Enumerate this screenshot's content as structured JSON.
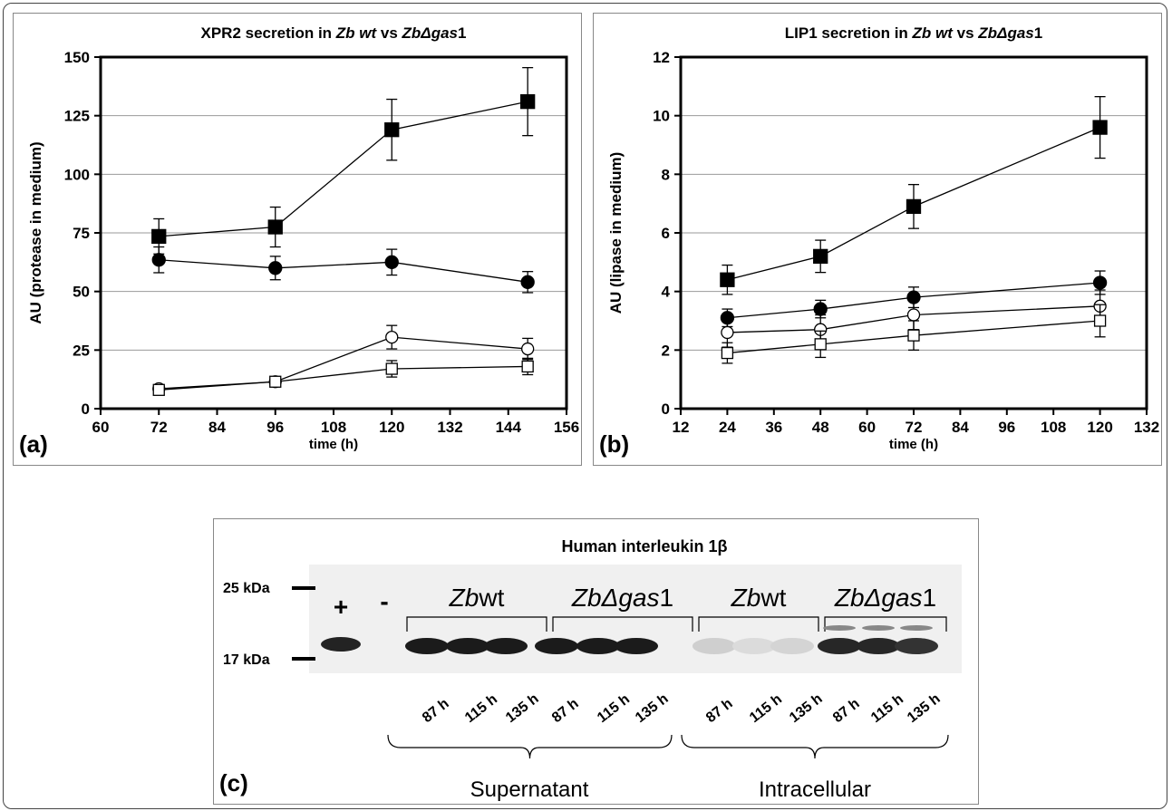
{
  "chart_data": [
    {
      "type": "scatter",
      "panel_label": "(a)",
      "title_parts": [
        "XPR2 secretion in ",
        "Zb wt",
        " vs ",
        "ZbΔgas",
        "1"
      ],
      "xlabel": "time (h)",
      "ylabel": "AU (protease in medium)",
      "xlim": [
        60,
        156
      ],
      "ylim": [
        0,
        150
      ],
      "xticks": [
        60,
        72,
        84,
        96,
        108,
        120,
        132,
        144,
        156
      ],
      "yticks": [
        0,
        25,
        50,
        75,
        100,
        125,
        150
      ],
      "grid": "horizontal",
      "series": [
        {
          "marker": "filled-square",
          "x": [
            72,
            96,
            120,
            148
          ],
          "y": [
            73.5,
            77.5,
            119,
            131
          ],
          "err": [
            7.5,
            8.5,
            13,
            14.5
          ]
        },
        {
          "marker": "filled-circle",
          "x": [
            72,
            96,
            120,
            148
          ],
          "y": [
            63.5,
            60,
            62.5,
            54
          ],
          "err": [
            5.5,
            5,
            5.5,
            4.5
          ]
        },
        {
          "marker": "open-circle",
          "x": [
            72,
            96,
            120,
            148
          ],
          "y": [
            8.5,
            11.5,
            30.5,
            25.5
          ],
          "err": [
            1.5,
            2,
            5,
            4.5
          ]
        },
        {
          "marker": "open-square",
          "x": [
            72,
            96,
            120,
            148
          ],
          "y": [
            8,
            11.5,
            17,
            18
          ],
          "err": [
            1.5,
            2,
            3.5,
            3.5
          ]
        }
      ]
    },
    {
      "type": "scatter",
      "panel_label": "(b)",
      "title_parts": [
        "LIP1 secretion in ",
        "Zb wt",
        " vs ",
        "ZbΔgas",
        "1"
      ],
      "xlabel": "time (h)",
      "ylabel": "AU (lipase in medium)",
      "xlim": [
        12,
        132
      ],
      "ylim": [
        0,
        12
      ],
      "xticks": [
        12,
        24,
        36,
        48,
        60,
        72,
        84,
        96,
        108,
        120,
        132
      ],
      "yticks": [
        0,
        2,
        4,
        6,
        8,
        10,
        12
      ],
      "grid": "horizontal",
      "series": [
        {
          "marker": "filled-square",
          "x": [
            24,
            48,
            72,
            120
          ],
          "y": [
            4.4,
            5.2,
            6.9,
            9.6
          ],
          "err": [
            0.5,
            0.55,
            0.75,
            1.05
          ]
        },
        {
          "marker": "filled-circle",
          "x": [
            24,
            48,
            72,
            120
          ],
          "y": [
            3.1,
            3.4,
            3.8,
            4.3
          ],
          "err": [
            0.3,
            0.3,
            0.35,
            0.4
          ]
        },
        {
          "marker": "open-circle",
          "x": [
            24,
            48,
            72,
            120
          ],
          "y": [
            2.6,
            2.7,
            3.2,
            3.5
          ],
          "err": [
            0.5,
            0.5,
            0.5,
            0.55
          ]
        },
        {
          "marker": "open-square",
          "x": [
            24,
            48,
            72,
            120
          ],
          "y": [
            1.9,
            2.2,
            2.5,
            3.0
          ],
          "err": [
            0.35,
            0.45,
            0.5,
            0.55
          ]
        }
      ]
    }
  ],
  "blot": {
    "panel_label": "(c)",
    "title": "Human interleukin 1β",
    "markers": [
      "25 kDa",
      "17 kDa"
    ],
    "controls": [
      "+",
      "-"
    ],
    "groups": [
      {
        "strain_prefix": "Zb",
        "strain_suffix": "wt"
      },
      {
        "strain_prefix": "ZbΔgas",
        "strain_suffix": "1"
      },
      {
        "strain_prefix": "Zb",
        "strain_suffix": "wt"
      },
      {
        "strain_prefix": "ZbΔgas",
        "strain_suffix": "1"
      }
    ],
    "lane_labels": [
      "87 h",
      "115 h",
      "135 h",
      "87 h",
      "115 h",
      "135 h",
      "87 h",
      "115 h",
      "135 h",
      "87 h",
      "115 h",
      "135 h"
    ],
    "fractions": [
      "Supernatant",
      "Intracellular"
    ],
    "band_intensity": [
      0.95,
      0.95,
      0.95,
      0.95,
      0.95,
      0.95,
      0.2,
      0.15,
      0.18,
      0.9,
      0.9,
      0.85
    ]
  }
}
